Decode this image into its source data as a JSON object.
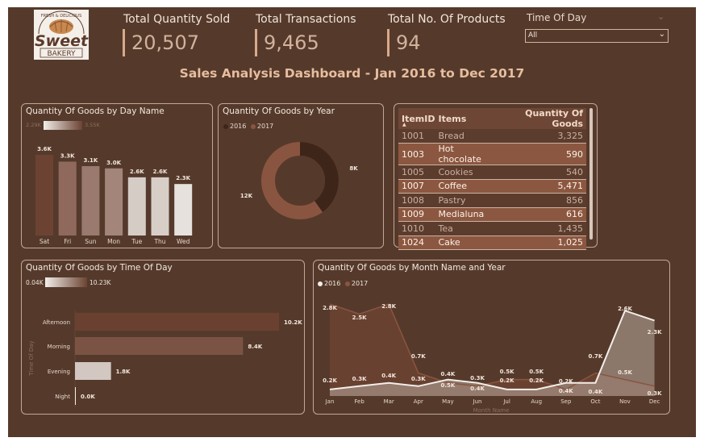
{
  "kpis": [
    {
      "title": "Total Quantity Sold",
      "value": "20,507"
    },
    {
      "title": "Total Transactions",
      "value": "9,465"
    },
    {
      "title": "Total No. Of Products",
      "value": "94"
    }
  ],
  "slicer": {
    "title": "Time Of Day",
    "selected": "All"
  },
  "dashboard_title": "Sales Analysis Dashboard - Jan 2016 to Dec 2017",
  "logo": {
    "top_text": "FRESH & DELICIOUS",
    "main_text": "Sweet",
    "sub_text": "BAKERY"
  },
  "colors": {
    "background": "#553a2c",
    "panel_border": "#c4a694",
    "series_2016": "#f3eee9",
    "series_2017": "#8a5540",
    "kpi_accent": "#d8a98a"
  },
  "icons": {
    "slicer_dropdown": "chevron-down-icon",
    "table_sort": "sort-ascending-icon"
  },
  "panels": {
    "day": {
      "title": "Quantity Of Goods by Day Name",
      "gradient_min": "2.29K",
      "gradient_max": "3.55K"
    },
    "year": {
      "title": "Quantity Of Goods by Year"
    },
    "table": {
      "columns": [
        "ItemID",
        "Items",
        "Quantity Of Goods"
      ]
    },
    "tod": {
      "title": "Quantity Of Goods by Time Of Day",
      "gradient_min": "0.04K",
      "gradient_max": "10.23K",
      "axis_title": "Time Of Day"
    },
    "month": {
      "title": "Quantity Of Goods by Month Name and Year",
      "xlabel": "Month Name"
    }
  },
  "chart_data": [
    {
      "type": "bar",
      "title": "Quantity Of Goods by Day Name",
      "categories": [
        "Sat",
        "Fri",
        "Sun",
        "Mon",
        "Tue",
        "Thu",
        "Wed"
      ],
      "values": [
        3.6,
        3.3,
        3.1,
        3.0,
        2.6,
        2.6,
        2.3
      ],
      "labels": [
        "3.6K",
        "3.3K",
        "3.1K",
        "3.0K",
        "2.6K",
        "2.6K",
        "2.3K"
      ],
      "colors": [
        "#6c4333",
        "#8f6a5c",
        "#9a7a6e",
        "#a3857a",
        "#d6ccc6",
        "#d8cec8",
        "#e6e1dd"
      ],
      "ylim": [
        0,
        4
      ]
    },
    {
      "type": "pie",
      "title": "Quantity Of Goods by Year",
      "legend": [
        "2016",
        "2017"
      ],
      "values": [
        8,
        12
      ],
      "labels": [
        "8K",
        "12K"
      ],
      "colors": [
        "#3d2519",
        "#8a5540"
      ]
    },
    {
      "type": "table",
      "columns": [
        "ItemID",
        "Items",
        "Quantity Of Goods"
      ],
      "rows": [
        [
          "1001",
          "Bread",
          "3,325"
        ],
        [
          "1003",
          "Hot chocolate",
          "590"
        ],
        [
          "1005",
          "Cookies",
          "540"
        ],
        [
          "1007",
          "Coffee",
          "5,471"
        ],
        [
          "1008",
          "Pastry",
          "856"
        ],
        [
          "1009",
          "Medialuna",
          "616"
        ],
        [
          "1010",
          "Tea",
          "1,435"
        ],
        [
          "1024",
          "Cake",
          "1,025"
        ]
      ]
    },
    {
      "type": "bar",
      "title": "Quantity Of Goods by Time Of Day",
      "categories": [
        "Afternoon",
        "Morning",
        "Evening",
        "Night"
      ],
      "values": [
        10.2,
        8.4,
        1.8,
        0.0
      ],
      "labels": [
        "10.2K",
        "8.4K",
        "1.8K",
        "0.0K"
      ],
      "colors": [
        "#6a4131",
        "#7a5344",
        "#d2c7c1",
        "#f1ede9"
      ],
      "xlim": [
        0,
        10.2
      ],
      "ylabel": "Time Of Day"
    },
    {
      "type": "area",
      "title": "Quantity Of Goods by Month Name and Year",
      "categories": [
        "Jan",
        "Feb",
        "Mar",
        "Apr",
        "May",
        "Jun",
        "Jul",
        "Aug",
        "Sep",
        "Oct",
        "Nov",
        "Dec"
      ],
      "series": [
        {
          "name": "2016",
          "values": [
            0.2,
            0.3,
            0.4,
            0.3,
            0.5,
            0.4,
            0.2,
            0.2,
            0.4,
            0.4,
            2.6,
            2.3
          ],
          "labels": [
            "0.2K",
            "0.3K",
            "0.4K",
            "0.3K",
            "0.5K",
            "0.4K",
            "0.2K",
            "0.2K",
            "0.4K",
            "0.4K",
            "2.6K",
            "2.3K"
          ]
        },
        {
          "name": "2017",
          "values": [
            2.8,
            2.5,
            2.8,
            0.7,
            0.4,
            0.3,
            0.5,
            0.5,
            0.2,
            0.7,
            0.5,
            0.3
          ],
          "labels": [
            "2.8K",
            "2.5K",
            "2.8K",
            "0.7K",
            "0.4K",
            "0.3K",
            "0.5K",
            "0.5K",
            "0.2K",
            "0.7K",
            "0.5K",
            "0.3K"
          ]
        }
      ],
      "xlabel": "Month Name",
      "ylim": [
        0,
        2.9
      ]
    }
  ]
}
